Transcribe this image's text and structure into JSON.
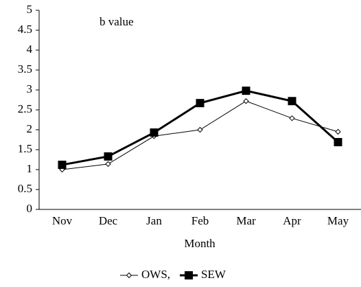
{
  "chart_data": {
    "type": "line",
    "annotation": "b value",
    "x_label": "Month",
    "categories": [
      "Nov",
      "Dec",
      "Jan",
      "Feb",
      "Mar",
      "Apr",
      "May"
    ],
    "series": [
      {
        "name": "OWS,",
        "color": "#000000",
        "marker": "diamond",
        "values": [
          1.0,
          1.14,
          1.84,
          2.0,
          2.72,
          2.29,
          1.95
        ]
      },
      {
        "name": "SEW",
        "color": "#000000",
        "marker": "square",
        "values": [
          1.12,
          1.33,
          1.93,
          2.67,
          2.98,
          2.72,
          1.69
        ]
      }
    ],
    "ylim": [
      0,
      5
    ],
    "yticks": [
      0,
      0.5,
      1,
      1.5,
      2,
      2.5,
      3,
      3.5,
      4,
      4.5,
      5
    ],
    "grid": false,
    "legend": "bottom"
  }
}
